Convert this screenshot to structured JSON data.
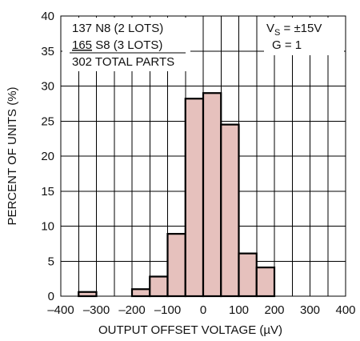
{
  "chart_data": {
    "type": "bar",
    "title": "",
    "xlabel": "OUTPUT OFFSET VOLTAGE (µV)",
    "ylabel": "PERCENT OF UNITS (%)",
    "xlim": [
      -400,
      400
    ],
    "ylim": [
      0,
      40
    ],
    "x_ticks": [
      "–400",
      "–300",
      "–200",
      "–100",
      "0",
      "100",
      "200",
      "300",
      "400"
    ],
    "y_ticks": [
      "0",
      "5",
      "10",
      "15",
      "20",
      "25",
      "30",
      "35",
      "40"
    ],
    "grid": true,
    "bin_width": 50,
    "bars": [
      {
        "x0": -350,
        "x1": -300,
        "value": 0.6
      },
      {
        "x0": -200,
        "x1": -150,
        "value": 1.0
      },
      {
        "x0": -150,
        "x1": -100,
        "value": 2.8
      },
      {
        "x0": -100,
        "x1": -50,
        "value": 8.9
      },
      {
        "x0": -50,
        "x1": 0,
        "value": 28.2
      },
      {
        "x0": 0,
        "x1": 50,
        "value": 29.0
      },
      {
        "x0": 50,
        "x1": 100,
        "value": 24.5
      },
      {
        "x0": 100,
        "x1": 150,
        "value": 6.1
      },
      {
        "x0": 150,
        "x1": 200,
        "value": 4.1
      }
    ],
    "annotations": {
      "lot1": "137 N8 (2 LOTS)",
      "lot2_num": "165",
      "lot2_rest": " S8 (3 LOTS)",
      "total": "302 TOTAL PARTS",
      "vs_v": "V",
      "vs_sub": "S",
      "vs_rest": " = ±15V",
      "gain": "G = 1"
    },
    "colors": {
      "bar_fill": "#e6c1bd",
      "outline": "#000000"
    }
  }
}
